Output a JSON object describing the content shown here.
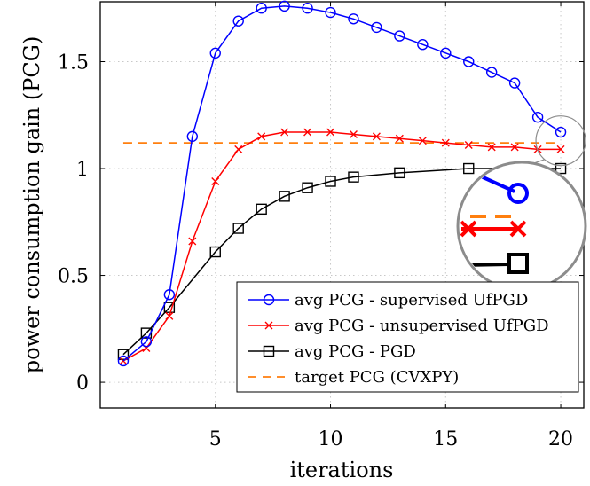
{
  "chart_data": {
    "type": "line",
    "xlabel": "iterations",
    "ylabel": "power consumption gain (PCG)",
    "xlim": [
      0,
      21
    ],
    "ylim": [
      -0.12,
      1.78
    ],
    "xticks": [
      5,
      10,
      15,
      20
    ],
    "yticks": [
      0,
      0.5,
      1,
      1.5
    ],
    "xtick_labels": [
      "5",
      "10",
      "15",
      "20"
    ],
    "ytick_labels": [
      "0",
      "0.5",
      "1",
      "1.5"
    ],
    "grid": true,
    "legend_position": "bottom-right",
    "series": [
      {
        "name": "avg PCG - supervised UfPGD",
        "color": "#0000ff",
        "marker": "circle",
        "x": [
          1,
          2,
          3,
          4,
          5,
          6,
          7,
          8,
          9,
          10,
          11,
          12,
          13,
          14,
          15,
          16,
          17,
          18,
          19,
          20
        ],
        "y": [
          0.1,
          0.19,
          0.41,
          1.15,
          1.54,
          1.69,
          1.75,
          1.76,
          1.75,
          1.73,
          1.7,
          1.66,
          1.62,
          1.58,
          1.54,
          1.5,
          1.45,
          1.4,
          1.24,
          1.17
        ]
      },
      {
        "name": "avg PCG - unsupervised UfPGD",
        "color": "#ff0000",
        "marker": "x",
        "x": [
          1,
          2,
          3,
          4,
          5,
          6,
          7,
          8,
          9,
          10,
          11,
          12,
          13,
          14,
          15,
          16,
          17,
          18,
          19,
          20
        ],
        "y": [
          0.1,
          0.16,
          0.31,
          0.66,
          0.94,
          1.09,
          1.15,
          1.17,
          1.17,
          1.17,
          1.16,
          1.15,
          1.14,
          1.13,
          1.12,
          1.11,
          1.1,
          1.1,
          1.09,
          1.09
        ]
      },
      {
        "name": "avg PCG - PGD",
        "color": "#000000",
        "marker": "square",
        "x": [
          1,
          2,
          3,
          5,
          6,
          7,
          8,
          9,
          10,
          11,
          13,
          16,
          20
        ],
        "y": [
          0.13,
          0.23,
          0.35,
          0.61,
          0.72,
          0.81,
          0.87,
          0.91,
          0.94,
          0.96,
          0.98,
          1.0,
          1.0
        ]
      },
      {
        "name": "target PCG (CVXPY)",
        "color": "#ff7f0e",
        "marker": "none",
        "dashed": true,
        "x": [
          1,
          20
        ],
        "y": [
          1.12,
          1.12
        ]
      }
    ]
  }
}
